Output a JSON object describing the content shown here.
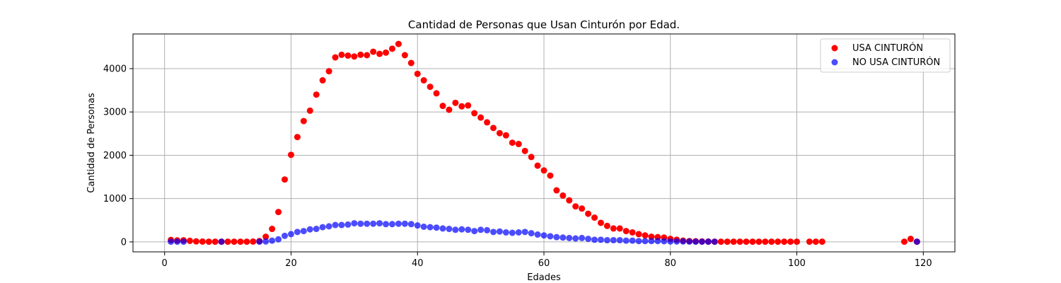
{
  "chart_data": {
    "type": "scatter",
    "title": "Cantidad de Personas que Usan Cinturón por Edad.",
    "xlabel": "Edades",
    "ylabel": "Cantidad de Personas",
    "xlim": [
      -5,
      125
    ],
    "ylim": [
      -230,
      4800
    ],
    "xticks": [
      0,
      20,
      40,
      60,
      80,
      100,
      120
    ],
    "yticks": [
      0,
      1000,
      2000,
      3000,
      4000
    ],
    "grid": true,
    "legend_position": "top-right",
    "series": [
      {
        "name": "USA CINTURÓN",
        "color": "#ff0000",
        "opacity": 1.0,
        "points": [
          [
            1,
            45
          ],
          [
            2,
            35
          ],
          [
            3,
            38
          ],
          [
            4,
            25
          ],
          [
            5,
            12
          ],
          [
            6,
            8
          ],
          [
            7,
            5
          ],
          [
            8,
            5
          ],
          [
            9,
            5
          ],
          [
            10,
            5
          ],
          [
            11,
            5
          ],
          [
            12,
            5
          ],
          [
            13,
            5
          ],
          [
            14,
            8
          ],
          [
            15,
            20
          ],
          [
            16,
            120
          ],
          [
            17,
            300
          ],
          [
            18,
            690
          ],
          [
            19,
            1440
          ],
          [
            20,
            2010
          ],
          [
            21,
            2420
          ],
          [
            22,
            2790
          ],
          [
            23,
            3030
          ],
          [
            24,
            3400
          ],
          [
            25,
            3730
          ],
          [
            26,
            3940
          ],
          [
            27,
            4260
          ],
          [
            28,
            4320
          ],
          [
            29,
            4300
          ],
          [
            30,
            4280
          ],
          [
            31,
            4320
          ],
          [
            32,
            4310
          ],
          [
            33,
            4390
          ],
          [
            34,
            4340
          ],
          [
            35,
            4370
          ],
          [
            36,
            4460
          ],
          [
            37,
            4570
          ],
          [
            38,
            4310
          ],
          [
            39,
            4130
          ],
          [
            40,
            3880
          ],
          [
            41,
            3730
          ],
          [
            42,
            3580
          ],
          [
            43,
            3430
          ],
          [
            44,
            3140
          ],
          [
            45,
            3050
          ],
          [
            46,
            3210
          ],
          [
            47,
            3130
          ],
          [
            48,
            3150
          ],
          [
            49,
            2970
          ],
          [
            50,
            2870
          ],
          [
            51,
            2760
          ],
          [
            52,
            2630
          ],
          [
            53,
            2510
          ],
          [
            54,
            2460
          ],
          [
            55,
            2290
          ],
          [
            56,
            2260
          ],
          [
            57,
            2100
          ],
          [
            58,
            1960
          ],
          [
            59,
            1760
          ],
          [
            60,
            1650
          ],
          [
            61,
            1530
          ],
          [
            62,
            1190
          ],
          [
            63,
            1070
          ],
          [
            64,
            960
          ],
          [
            65,
            820
          ],
          [
            66,
            770
          ],
          [
            67,
            650
          ],
          [
            68,
            560
          ],
          [
            69,
            440
          ],
          [
            70,
            370
          ],
          [
            71,
            310
          ],
          [
            72,
            310
          ],
          [
            73,
            250
          ],
          [
            74,
            220
          ],
          [
            75,
            180
          ],
          [
            76,
            150
          ],
          [
            77,
            120
          ],
          [
            78,
            110
          ],
          [
            79,
            100
          ],
          [
            80,
            70
          ],
          [
            81,
            50
          ],
          [
            82,
            30
          ],
          [
            83,
            20
          ],
          [
            84,
            15
          ],
          [
            85,
            10
          ],
          [
            86,
            8
          ],
          [
            87,
            5
          ],
          [
            88,
            5
          ],
          [
            89,
            5
          ],
          [
            90,
            5
          ],
          [
            91,
            5
          ],
          [
            92,
            5
          ],
          [
            93,
            5
          ],
          [
            94,
            5
          ],
          [
            95,
            5
          ],
          [
            96,
            5
          ],
          [
            97,
            5
          ],
          [
            98,
            5
          ],
          [
            99,
            5
          ],
          [
            100,
            5
          ],
          [
            102,
            5
          ],
          [
            103,
            5
          ],
          [
            104,
            5
          ],
          [
            117,
            5
          ],
          [
            118,
            70
          ],
          [
            119,
            5
          ]
        ]
      },
      {
        "name": "NO USA CINTURÓN",
        "color": "#0000ff",
        "opacity": 0.7,
        "points": [
          [
            1,
            5
          ],
          [
            2,
            5
          ],
          [
            3,
            5
          ],
          [
            9,
            5
          ],
          [
            15,
            5
          ],
          [
            16,
            10
          ],
          [
            17,
            30
          ],
          [
            18,
            60
          ],
          [
            19,
            140
          ],
          [
            20,
            180
          ],
          [
            21,
            230
          ],
          [
            22,
            250
          ],
          [
            23,
            290
          ],
          [
            24,
            300
          ],
          [
            25,
            340
          ],
          [
            26,
            360
          ],
          [
            27,
            390
          ],
          [
            28,
            390
          ],
          [
            29,
            400
          ],
          [
            30,
            430
          ],
          [
            31,
            420
          ],
          [
            32,
            420
          ],
          [
            33,
            420
          ],
          [
            34,
            430
          ],
          [
            35,
            410
          ],
          [
            36,
            410
          ],
          [
            37,
            420
          ],
          [
            38,
            420
          ],
          [
            39,
            410
          ],
          [
            40,
            380
          ],
          [
            41,
            350
          ],
          [
            42,
            340
          ],
          [
            43,
            330
          ],
          [
            44,
            310
          ],
          [
            45,
            300
          ],
          [
            46,
            280
          ],
          [
            47,
            290
          ],
          [
            48,
            280
          ],
          [
            49,
            250
          ],
          [
            50,
            280
          ],
          [
            51,
            270
          ],
          [
            52,
            230
          ],
          [
            53,
            240
          ],
          [
            54,
            220
          ],
          [
            55,
            210
          ],
          [
            56,
            220
          ],
          [
            57,
            230
          ],
          [
            58,
            200
          ],
          [
            59,
            170
          ],
          [
            60,
            150
          ],
          [
            61,
            130
          ],
          [
            62,
            110
          ],
          [
            63,
            100
          ],
          [
            64,
            90
          ],
          [
            65,
            80
          ],
          [
            66,
            90
          ],
          [
            67,
            70
          ],
          [
            68,
            50
          ],
          [
            69,
            50
          ],
          [
            70,
            40
          ],
          [
            71,
            40
          ],
          [
            72,
            40
          ],
          [
            73,
            30
          ],
          [
            74,
            30
          ],
          [
            75,
            20
          ],
          [
            76,
            20
          ],
          [
            77,
            20
          ],
          [
            78,
            20
          ],
          [
            79,
            15
          ],
          [
            80,
            10
          ],
          [
            81,
            10
          ],
          [
            82,
            10
          ],
          [
            83,
            8
          ],
          [
            84,
            5
          ],
          [
            85,
            5
          ],
          [
            86,
            5
          ],
          [
            87,
            5
          ],
          [
            119,
            5
          ]
        ]
      }
    ]
  }
}
